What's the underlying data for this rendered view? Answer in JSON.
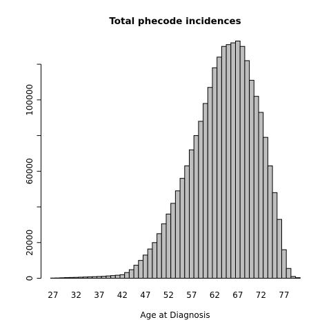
{
  "chart_data": {
    "type": "bar",
    "title": "Total phecode incidences",
    "xlabel": "Age at Diagnosis",
    "ylabel": "",
    "x": [
      27,
      28,
      29,
      30,
      31,
      32,
      33,
      34,
      35,
      36,
      37,
      38,
      39,
      40,
      41,
      42,
      43,
      44,
      45,
      46,
      47,
      48,
      49,
      50,
      51,
      52,
      53,
      54,
      55,
      56,
      57,
      58,
      59,
      60,
      61,
      62,
      63,
      64,
      65,
      66,
      67,
      68,
      69,
      70,
      71,
      72,
      73,
      74,
      75,
      76,
      77,
      78,
      79,
      80
    ],
    "values": [
      100,
      150,
      250,
      350,
      450,
      500,
      600,
      700,
      800,
      900,
      1000,
      1100,
      1300,
      1500,
      1700,
      2000,
      3200,
      4800,
      7300,
      10000,
      13000,
      16400,
      20000,
      25000,
      30500,
      36000,
      42000,
      49000,
      56000,
      63000,
      72000,
      80000,
      88000,
      98000,
      107000,
      118000,
      124000,
      130000,
      131000,
      132000,
      133000,
      130000,
      122000,
      111000,
      102000,
      93000,
      79000,
      63000,
      48000,
      33000,
      16000,
      5500,
      1000,
      300
    ],
    "xticks": [
      "27",
      "32",
      "37",
      "42",
      "47",
      "52",
      "57",
      "62",
      "67",
      "72",
      "77"
    ],
    "yticks": [
      "0",
      "20000",
      "60000",
      "100000"
    ],
    "ylim": [
      0,
      133000
    ],
    "grid": false,
    "legend": "none",
    "bar_color": "#bebebe",
    "edge_color": "#000000"
  }
}
